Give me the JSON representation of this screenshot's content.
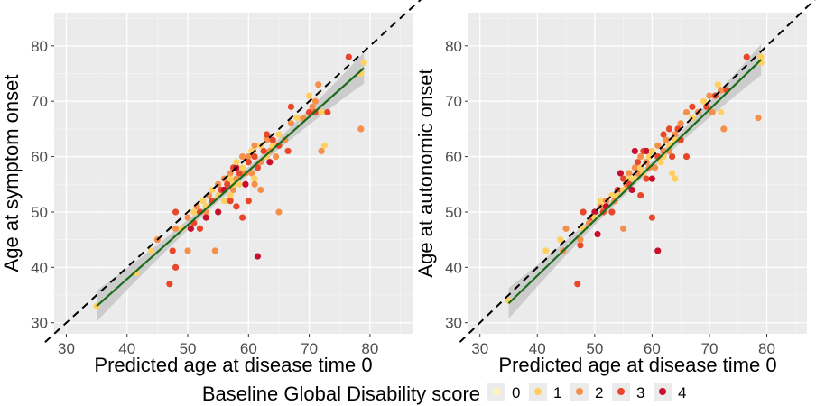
{
  "chart_data": [
    {
      "type": "scatter",
      "xlabel": "Predicted age at disease time 0",
      "ylabel": "Age at symptom onset",
      "xlim": [
        28,
        87
      ],
      "ylim": [
        28,
        86
      ],
      "xticks": [
        30,
        40,
        50,
        60,
        70,
        80
      ],
      "yticks": [
        30,
        40,
        50,
        60,
        70,
        80
      ],
      "grid": true,
      "reference_line": "y = x (dashed)",
      "fit_line": {
        "from": [
          35,
          33
        ],
        "to": [
          79,
          76
        ],
        "color": "#1a6b1a",
        "band": true
      },
      "points": [
        [
          35,
          33,
          1
        ],
        [
          41.5,
          39,
          1
        ],
        [
          44,
          43,
          1
        ],
        [
          45,
          45,
          2
        ],
        [
          47,
          37,
          3
        ],
        [
          47.5,
          43,
          3
        ],
        [
          48,
          40,
          3
        ],
        [
          48,
          47,
          2
        ],
        [
          48,
          50,
          3
        ],
        [
          49,
          47,
          1
        ],
        [
          50,
          49,
          2
        ],
        [
          50,
          43,
          2
        ],
        [
          50.5,
          47,
          4
        ],
        [
          51,
          50,
          1
        ],
        [
          51,
          48,
          3
        ],
        [
          51.5,
          51,
          2
        ],
        [
          52,
          50,
          3
        ],
        [
          52,
          47,
          3
        ],
        [
          52.5,
          52,
          1
        ],
        [
          53,
          50,
          2
        ],
        [
          53,
          49,
          4
        ],
        [
          53,
          51,
          1
        ],
        [
          53.5,
          53,
          2
        ],
        [
          54,
          52,
          3
        ],
        [
          54,
          54,
          1
        ],
        [
          54.5,
          43,
          2
        ],
        [
          55,
          55,
          2
        ],
        [
          55,
          53,
          1
        ],
        [
          55,
          50,
          4
        ],
        [
          55.5,
          54,
          3
        ],
        [
          56,
          56,
          2
        ],
        [
          56,
          52,
          1
        ],
        [
          56,
          54,
          4
        ],
        [
          56.5,
          55,
          3
        ],
        [
          57,
          53,
          1
        ],
        [
          57,
          57,
          2
        ],
        [
          57,
          56,
          1
        ],
        [
          57,
          52,
          3
        ],
        [
          57.5,
          54,
          2
        ],
        [
          57.5,
          55,
          1
        ],
        [
          57.5,
          58,
          3
        ],
        [
          58,
          51,
          3
        ],
        [
          58,
          56,
          2
        ],
        [
          58,
          58,
          4
        ],
        [
          58,
          59,
          1
        ],
        [
          58.5,
          55,
          1
        ],
        [
          58.5,
          57,
          3
        ],
        [
          59,
          60,
          2
        ],
        [
          59,
          58,
          1
        ],
        [
          59,
          49,
          3
        ],
        [
          59.5,
          57,
          2
        ],
        [
          59.5,
          55,
          4
        ],
        [
          60,
          60,
          2
        ],
        [
          60,
          59,
          3
        ],
        [
          60,
          52,
          3
        ],
        [
          60.5,
          61,
          1
        ],
        [
          60.5,
          57,
          2
        ],
        [
          61,
          62,
          2
        ],
        [
          61,
          60,
          3
        ],
        [
          61,
          56,
          1
        ],
        [
          61,
          55,
          2
        ],
        [
          61.5,
          42,
          4
        ],
        [
          61.5,
          58,
          3
        ],
        [
          62,
          62,
          1
        ],
        [
          62,
          59,
          2
        ],
        [
          62,
          54,
          2
        ],
        [
          62.5,
          61,
          3
        ],
        [
          63,
          63,
          2
        ],
        [
          63,
          64,
          3
        ],
        [
          63,
          60,
          1
        ],
        [
          63.5,
          59,
          4
        ],
        [
          63.5,
          61,
          2
        ],
        [
          64,
          62,
          1
        ],
        [
          64,
          63,
          3
        ],
        [
          64.5,
          60,
          2
        ],
        [
          65,
          64,
          1
        ],
        [
          65,
          62,
          3
        ],
        [
          65,
          50,
          2
        ],
        [
          66,
          63,
          2
        ],
        [
          66.5,
          61,
          3
        ],
        [
          67,
          66,
          2
        ],
        [
          67,
          69,
          3
        ],
        [
          68,
          67,
          1
        ],
        [
          69,
          67,
          2
        ],
        [
          70,
          68,
          3
        ],
        [
          70,
          71,
          1
        ],
        [
          70.5,
          69,
          2
        ],
        [
          71,
          68,
          3
        ],
        [
          71,
          70,
          2
        ],
        [
          71.5,
          73,
          2
        ],
        [
          72,
          68,
          1
        ],
        [
          72,
          61,
          2
        ],
        [
          72.5,
          62,
          1
        ],
        [
          73,
          68,
          3
        ],
        [
          76.5,
          78,
          3
        ],
        [
          78.5,
          75,
          1
        ],
        [
          78.5,
          65,
          2
        ],
        [
          79,
          77,
          1
        ]
      ]
    },
    {
      "type": "scatter",
      "xlabel": "Predicted age at disease time 0",
      "ylabel": "Age at autonomic onset",
      "xlim": [
        28,
        87
      ],
      "ylim": [
        28,
        86
      ],
      "xticks": [
        30,
        40,
        50,
        60,
        70,
        80
      ],
      "yticks": [
        30,
        40,
        50,
        60,
        70,
        80
      ],
      "grid": true,
      "reference_line": "y = x (dashed)",
      "fit_line": {
        "from": [
          35,
          33.5
        ],
        "to": [
          79,
          77.5
        ],
        "color": "#1a6b1a",
        "band": true
      },
      "points": [
        [
          35,
          34,
          1
        ],
        [
          41.5,
          43,
          1
        ],
        [
          44,
          45,
          1
        ],
        [
          44.5,
          43,
          2
        ],
        [
          45,
          47,
          2
        ],
        [
          47,
          37,
          3
        ],
        [
          47.5,
          44,
          3
        ],
        [
          47.5,
          45,
          2
        ],
        [
          48,
          47,
          1
        ],
        [
          48,
          50,
          3
        ],
        [
          49,
          48,
          2
        ],
        [
          49.5,
          49,
          3
        ],
        [
          50,
          50,
          4
        ],
        [
          50,
          49,
          1
        ],
        [
          50.5,
          46,
          4
        ],
        [
          51,
          51,
          2
        ],
        [
          51,
          52,
          1
        ],
        [
          51.5,
          50,
          3
        ],
        [
          52,
          52,
          2
        ],
        [
          52,
          51,
          4
        ],
        [
          53,
          53,
          1
        ],
        [
          53,
          50,
          3
        ],
        [
          53.5,
          52,
          2
        ],
        [
          54,
          54,
          3
        ],
        [
          54,
          53,
          1
        ],
        [
          54.5,
          57,
          4
        ],
        [
          55,
          47,
          2
        ],
        [
          55,
          56,
          3
        ],
        [
          55,
          54,
          1
        ],
        [
          55.5,
          55,
          2
        ],
        [
          56,
          57,
          2
        ],
        [
          56,
          56,
          1
        ],
        [
          56,
          55,
          3
        ],
        [
          56.5,
          54,
          4
        ],
        [
          57,
          58,
          2
        ],
        [
          57,
          61,
          4
        ],
        [
          57,
          56,
          1
        ],
        [
          57.5,
          59,
          3
        ],
        [
          57.5,
          57,
          2
        ],
        [
          58,
          53,
          3
        ],
        [
          58,
          58,
          1
        ],
        [
          58,
          60,
          2
        ],
        [
          58.5,
          61,
          3
        ],
        [
          58.5,
          57,
          1
        ],
        [
          59,
          59,
          2
        ],
        [
          59,
          61,
          4
        ],
        [
          59,
          56,
          3
        ],
        [
          59.5,
          60,
          1
        ],
        [
          59.5,
          58,
          2
        ],
        [
          60,
          49,
          3
        ],
        [
          60,
          56,
          4
        ],
        [
          60,
          61,
          1
        ],
        [
          60.5,
          58,
          2
        ],
        [
          61,
          43,
          4
        ],
        [
          61,
          60,
          3
        ],
        [
          61,
          62,
          2
        ],
        [
          61.5,
          59,
          1
        ],
        [
          62,
          64,
          3
        ],
        [
          62,
          61,
          2
        ],
        [
          62,
          60,
          1
        ],
        [
          62.5,
          63,
          2
        ],
        [
          63,
          65,
          3
        ],
        [
          63,
          62,
          1
        ],
        [
          63,
          61,
          2
        ],
        [
          63.5,
          60,
          3
        ],
        [
          63.5,
          57,
          1
        ],
        [
          64,
          64,
          2
        ],
        [
          64,
          63,
          1
        ],
        [
          64,
          56,
          1
        ],
        [
          64.5,
          65,
          3
        ],
        [
          65,
          66,
          2
        ],
        [
          65,
          63,
          3
        ],
        [
          66,
          68,
          2
        ],
        [
          66,
          60,
          3
        ],
        [
          67,
          67,
          1
        ],
        [
          67,
          69,
          3
        ],
        [
          68,
          68,
          2
        ],
        [
          69,
          70,
          1
        ],
        [
          69.5,
          69,
          3
        ],
        [
          70,
          71,
          2
        ],
        [
          70.5,
          68,
          2
        ],
        [
          71,
          71,
          3
        ],
        [
          71.5,
          73,
          1
        ],
        [
          72,
          68,
          1
        ],
        [
          72,
          72,
          2
        ],
        [
          72.5,
          65,
          2
        ],
        [
          73,
          72,
          3
        ],
        [
          76.5,
          78,
          3
        ],
        [
          78.5,
          67,
          2
        ],
        [
          79,
          78,
          1
        ],
        [
          79,
          77,
          1
        ]
      ]
    }
  ],
  "legend": {
    "title": "Baseline Global Disability score",
    "position": "bottom",
    "labels": [
      "0",
      "1",
      "2",
      "3",
      "4"
    ],
    "colors": [
      "#fff5b0",
      "#ffd060",
      "#f5904a",
      "#e8472a",
      "#c8102e"
    ]
  },
  "colors": {
    "panel_bg": "#ebebeb",
    "grid_major": "#ffffff",
    "fit_line": "#1a6b1a",
    "fit_band": "#c7c7c7",
    "reference": "#000000"
  }
}
